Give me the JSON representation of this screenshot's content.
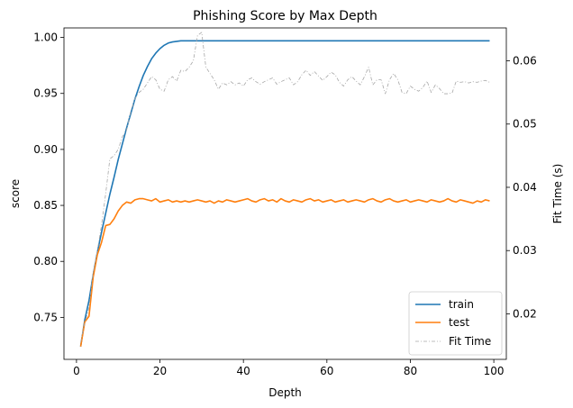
{
  "chart_data": {
    "type": "line",
    "title": "Phishing Score by Max Depth",
    "xlabel": "Depth",
    "ylabel": "score",
    "y2label": "Fit Time (s)",
    "xlim": [
      -3,
      103
    ],
    "ylim": [
      0.7125,
      1.0085
    ],
    "y2lim": [
      0.0128,
      0.0652
    ],
    "x_ticks": [
      0,
      20,
      40,
      60,
      80,
      100
    ],
    "y_ticks": [
      0.75,
      0.8,
      0.85,
      0.9,
      0.95,
      1.0
    ],
    "y_tick_labels": [
      "0.75",
      "0.80",
      "0.85",
      "0.90",
      "0.95",
      "1.00"
    ],
    "y2_ticks": [
      0.02,
      0.03,
      0.04,
      0.05,
      0.06
    ],
    "y2_tick_labels": [
      "0.02",
      "0.03",
      "0.04",
      "0.05",
      "0.06"
    ],
    "grid": false,
    "legend_position": "lower-right",
    "series": [
      {
        "name": "train",
        "axis": "left",
        "color": "#1f77b4",
        "style": "solid",
        "x": [
          1,
          2,
          3,
          4,
          5,
          6,
          7,
          8,
          9,
          10,
          11,
          12,
          13,
          14,
          15,
          16,
          17,
          18,
          19,
          20,
          21,
          22,
          23,
          24,
          25,
          26,
          27,
          28,
          29,
          30,
          40,
          50,
          60,
          70,
          80,
          90,
          99
        ],
        "values": [
          0.724,
          0.748,
          0.765,
          0.788,
          0.808,
          0.826,
          0.843,
          0.86,
          0.875,
          0.891,
          0.905,
          0.919,
          0.932,
          0.945,
          0.956,
          0.966,
          0.974,
          0.981,
          0.986,
          0.99,
          0.993,
          0.995,
          0.996,
          0.9965,
          0.997,
          0.997,
          0.997,
          0.997,
          0.997,
          0.997,
          0.997,
          0.997,
          0.997,
          0.997,
          0.997,
          0.997,
          0.997
        ]
      },
      {
        "name": "test",
        "axis": "left",
        "color": "#ff7f0e",
        "style": "solid",
        "x": [
          1,
          2,
          3,
          4,
          5,
          6,
          7,
          8,
          9,
          10,
          11,
          12,
          13,
          14,
          15,
          16,
          17,
          18,
          19,
          20,
          21,
          22,
          23,
          24,
          25,
          26,
          27,
          28,
          29,
          30,
          31,
          32,
          33,
          34,
          35,
          36,
          37,
          38,
          39,
          40,
          41,
          42,
          43,
          44,
          45,
          46,
          47,
          48,
          49,
          50,
          51,
          52,
          53,
          54,
          55,
          56,
          57,
          58,
          59,
          60,
          61,
          62,
          63,
          64,
          65,
          66,
          67,
          68,
          69,
          70,
          71,
          72,
          73,
          74,
          75,
          76,
          77,
          78,
          79,
          80,
          81,
          82,
          83,
          84,
          85,
          86,
          87,
          88,
          89,
          90,
          91,
          92,
          93,
          94,
          95,
          96,
          97,
          98,
          99
        ],
        "values": [
          0.724,
          0.746,
          0.751,
          0.786,
          0.806,
          0.817,
          0.832,
          0.833,
          0.838,
          0.845,
          0.85,
          0.853,
          0.852,
          0.855,
          0.856,
          0.856,
          0.855,
          0.854,
          0.856,
          0.853,
          0.854,
          0.855,
          0.853,
          0.854,
          0.853,
          0.854,
          0.853,
          0.854,
          0.855,
          0.854,
          0.853,
          0.854,
          0.852,
          0.854,
          0.853,
          0.855,
          0.854,
          0.853,
          0.854,
          0.855,
          0.856,
          0.854,
          0.853,
          0.855,
          0.856,
          0.854,
          0.855,
          0.853,
          0.856,
          0.854,
          0.853,
          0.855,
          0.854,
          0.853,
          0.855,
          0.856,
          0.854,
          0.855,
          0.853,
          0.854,
          0.855,
          0.853,
          0.854,
          0.855,
          0.853,
          0.854,
          0.855,
          0.854,
          0.853,
          0.855,
          0.856,
          0.854,
          0.853,
          0.855,
          0.856,
          0.854,
          0.853,
          0.854,
          0.855,
          0.853,
          0.854,
          0.855,
          0.854,
          0.853,
          0.855,
          0.854,
          0.853,
          0.854,
          0.856,
          0.854,
          0.853,
          0.855,
          0.854,
          0.853,
          0.852,
          0.854,
          0.853,
          0.855,
          0.854
        ]
      },
      {
        "name": "Fit Time",
        "axis": "right",
        "color": "#a6a6a6",
        "style": "dashdot",
        "x": [
          1,
          2,
          3,
          4,
          5,
          6,
          7,
          8,
          9,
          10,
          11,
          12,
          13,
          14,
          15,
          16,
          17,
          18,
          19,
          20,
          21,
          22,
          23,
          24,
          25,
          26,
          27,
          28,
          29,
          30,
          31,
          32,
          33,
          34,
          35,
          36,
          37,
          38,
          39,
          40,
          41,
          42,
          43,
          44,
          45,
          46,
          47,
          48,
          49,
          50,
          51,
          52,
          53,
          54,
          55,
          56,
          57,
          58,
          59,
          60,
          61,
          62,
          63,
          64,
          65,
          66,
          67,
          68,
          69,
          70,
          71,
          72,
          73,
          74,
          75,
          76,
          77,
          78,
          79,
          80,
          81,
          82,
          83,
          84,
          85,
          86,
          87,
          88,
          89,
          90,
          91,
          92,
          93,
          94,
          95,
          96,
          97,
          98,
          99
        ],
        "values": [
          0.0155,
          0.0185,
          0.021,
          0.0265,
          0.03,
          0.034,
          0.039,
          0.0445,
          0.045,
          0.046,
          0.048,
          0.049,
          0.052,
          0.054,
          0.055,
          0.0555,
          0.0565,
          0.0575,
          0.057,
          0.0555,
          0.0552,
          0.057,
          0.0575,
          0.0568,
          0.0585,
          0.0583,
          0.059,
          0.06,
          0.064,
          0.0645,
          0.059,
          0.058,
          0.057,
          0.0555,
          0.0565,
          0.0562,
          0.0567,
          0.0562,
          0.0565,
          0.056,
          0.057,
          0.0573,
          0.0567,
          0.0563,
          0.0567,
          0.057,
          0.0573,
          0.0563,
          0.0567,
          0.057,
          0.0573,
          0.0562,
          0.0567,
          0.0578,
          0.0585,
          0.0577,
          0.0583,
          0.0576,
          0.0569,
          0.0575,
          0.0582,
          0.0578,
          0.0566,
          0.056,
          0.057,
          0.0575,
          0.0568,
          0.0562,
          0.0575,
          0.059,
          0.0562,
          0.057,
          0.057,
          0.0548,
          0.057,
          0.058,
          0.057,
          0.055,
          0.0548,
          0.056,
          0.0555,
          0.0552,
          0.0558,
          0.0568,
          0.055,
          0.0562,
          0.0556,
          0.0548,
          0.0548,
          0.0549,
          0.0568,
          0.0566,
          0.0567,
          0.0565,
          0.0567,
          0.0566,
          0.0568,
          0.0569,
          0.0566
        ]
      }
    ]
  }
}
